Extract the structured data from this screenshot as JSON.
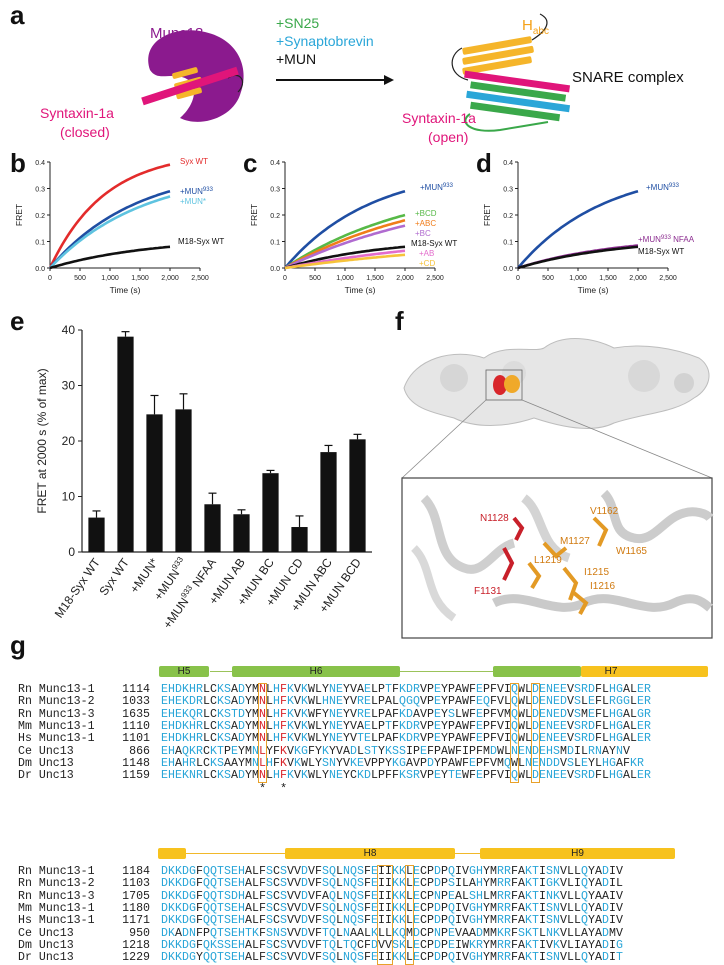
{
  "panels": {
    "a": "a",
    "b": "b",
    "c": "c",
    "d": "d",
    "e": "e",
    "f": "f",
    "g": "g"
  },
  "colors": {
    "red": "#e32b2b",
    "navy": "#1f4ea3",
    "cyan": "#5ec3e0",
    "black": "#111111",
    "green": "#57b947",
    "orange": "#f07d1a",
    "violet": "#b06bd0",
    "pink": "#e36ccc",
    "yellow": "#f6c33a",
    "purple": "#8b2b8f",
    "magenta": "#e0157a",
    "helix_green": "#88c24a",
    "helix_yellow": "#f7c21e",
    "seq_blue": "#2aa6d8",
    "box": "#e8a12a"
  },
  "panel_a": {
    "munc18": "Munc18",
    "syntaxin_closed_1": "Syntaxin-1a",
    "syntaxin_closed_2": "(closed)",
    "reagent1": "+SN25",
    "reagent2": "+Synaptobrevin",
    "reagent3": "+MUN",
    "habc_main": "H",
    "habc_sub": "abc",
    "snare": "SNARE complex",
    "syntaxin_open_1": "Syntaxin-1a",
    "syntaxin_open_2": "(open)"
  },
  "line_charts": {
    "ylabel": "FRET",
    "xlabel": "Time (s)",
    "yticks": [
      "0.0",
      "0.1",
      "0.2",
      "0.3",
      "0.4"
    ],
    "xticks": [
      "0",
      "500",
      "1,000",
      "1,500",
      "2,000",
      "2,500"
    ],
    "b": {
      "series": [
        {
          "name": "Syx WT",
          "color": "#e32b2b",
          "end": 0.39,
          "k": 2.2
        },
        {
          "name": "+MUN933",
          "color": "#1f4ea3",
          "end": 0.29,
          "k": 1.4
        },
        {
          "name": "+MUN*",
          "color": "#5ec3e0",
          "end": 0.27,
          "k": 1.3
        },
        {
          "name": "M18-Syx WT",
          "color": "#111111",
          "end": 0.08,
          "k": 1.2
        }
      ]
    },
    "c": {
      "series": [
        {
          "name": "+MUN933",
          "color": "#1f4ea3",
          "end": 0.29,
          "k": 1.4
        },
        {
          "name": "+BCD",
          "color": "#57b947",
          "end": 0.2,
          "k": 0.9
        },
        {
          "name": "+ABC",
          "color": "#f07d1a",
          "end": 0.18,
          "k": 0.8
        },
        {
          "name": "+BC",
          "color": "#b06bd0",
          "end": 0.16,
          "k": 0.7
        },
        {
          "name": "M18-Syx WT",
          "color": "#111111",
          "end": 0.08,
          "k": 1.2
        },
        {
          "name": "+AB",
          "color": "#e36ccc",
          "end": 0.065,
          "k": 0.6
        },
        {
          "name": "+CD",
          "color": "#f6c33a",
          "end": 0.05,
          "k": 0.5
        }
      ]
    },
    "d": {
      "series": [
        {
          "name": "+MUN933",
          "color": "#1f4ea3",
          "end": 0.29,
          "k": 1.4
        },
        {
          "name": "+MUN933 NFAA",
          "color": "#8b2b8f",
          "end": 0.085,
          "k": 1.2
        },
        {
          "name": "M18-Syx WT",
          "color": "#111111",
          "end": 0.08,
          "k": 1.2
        }
      ]
    },
    "legend_b": {
      "syx": "Syx WT",
      "mun": "+MUN",
      "mun_sup": "933",
      "munstar": "+MUN*",
      "m18": "M18-Syx WT"
    },
    "legend_c": {
      "mun": "+MUN",
      "mun_sup": "933",
      "bcd": "+BCD",
      "abc": "+ABC",
      "bc": "+BC",
      "m18": "M18-Syx WT",
      "ab": "+AB",
      "cd": "+CD"
    },
    "legend_d": {
      "mun": "+MUN",
      "mun_sup": "933",
      "nfaa": "+MUN",
      "nfaa_sup": "933",
      "nfaa_tail": " NFAA",
      "m18": "M18-Syx WT"
    }
  },
  "chart_data": {
    "type": "bar",
    "ylabel": "FRET at 2000 s (% of max)",
    "ylim": [
      0,
      40
    ],
    "yticks": [
      "0",
      "10",
      "20",
      "30",
      "40"
    ],
    "categories": [
      "M18-Syx WT",
      "Syx WT",
      "+MUN*",
      "+MUN933",
      "+MUN933 NFAA",
      "+MUN AB",
      "+MUN BC",
      "+MUN CD",
      "+MUN ABC",
      "+MUN BCD"
    ],
    "values": [
      6.2,
      38.8,
      24.8,
      25.7,
      8.6,
      6.8,
      14.2,
      4.5,
      18.0,
      20.3
    ],
    "errors": [
      1.2,
      0.9,
      3.4,
      2.8,
      2.0,
      0.8,
      0.5,
      2.0,
      1.2,
      0.9
    ]
  },
  "panel_f": {
    "residues": [
      "N1128",
      "V1162",
      "M1127",
      "W1165",
      "L1219",
      "I1215",
      "I1216",
      "F1131"
    ]
  },
  "panel_g": {
    "helices_top": [
      "H5",
      "H6",
      "H7"
    ],
    "helices_bottom": [
      "H8",
      "H9"
    ],
    "block1": [
      {
        "org": "Rn Munc13-1",
        "num": "1114",
        "seq": "EHDKHRLCKSADYMNLHFKVKWLYNEYVAELPTFKDRVPEYPAWFEPFVIQWLDENEEVSRDFLHGALER"
      },
      {
        "org": "Rn Munc13-2",
        "num": "1033",
        "seq": "EHEKDRLCKSADYMNLHFKVKWLHNEYVRELPALQGQVPEYPAWFEQFVLQWLDENEDVSLEFLRGGLER"
      },
      {
        "org": "Rn Munc13-3",
        "num": "1635",
        "seq": "EHEKQRLCKSTDYMNLHFKVKWFYNEYVRELPAFKDAVPEYSLWFEPFVMQWLDENEDVSMEFLHGALGR"
      },
      {
        "org": "Mm Munc13-1",
        "num": "1110",
        "seq": "EHDKHRLCKSADYMNLHFKVKWLYNEYVAELPTFKDRVPEYPAWFEPFVIQWLDENEEVSRDFLHGALER"
      },
      {
        "org": "Hs Munc13-1",
        "num": "1101",
        "seq": "EHDKHRLCKSADYMNLHFKVKWLYNEYVTELPAFKDRVPEYPAWFEPFVIQWLDENEEVSRDFLHGALER"
      },
      {
        "org": "Ce Unc13",
        "num": "866",
        "seq": "EHAQKRCKTPEYMNLYFKVKGFYKYVADLSTYKSSIPEFPAWFIPFMDWLNENDEHSMDILRNAYNV"
      },
      {
        "org": "Dm Unc13",
        "num": "1148",
        "seq": "EHAHRLCKSAAYMNLHFKVKWLYSNYVKEVPPYKGAVPDYPAWFEPFVMQWLNENDDVSLEYLHGAFKR"
      },
      {
        "org": "Dr Unc13",
        "num": "1159",
        "seq": "EHEKNRLCKSADYMNLHFKVKWLYNEYCKDLPFFKSRVPEYTEWFEPFVIQWLDENEEVSRDFLHGALER"
      }
    ],
    "block2": [
      {
        "org": "Rn Munc13-1",
        "num": "1184",
        "seq": "DKKDGFQQTSEHALFSCSVVDVFSQLNQSFEIIKKLECPDPQIVGHYMRRFAKTISNVLLQYADIV"
      },
      {
        "org": "Rn Munc13-2",
        "num": "1103",
        "seq": "DKKDGFQQTSEHALFSCSVVDVFSQLNQSFEIIKKLECPDPSILAHYMRRFAKTIGKVLIQYADIL"
      },
      {
        "org": "Rn Munc13-3",
        "num": "1705",
        "seq": "DKKDGFQQTSDHALFSCSVVDVFAQLNQSFEIIKKLECPNPEALSHLMRRFAKTINKVLLQYAAIV"
      },
      {
        "org": "Mm Munc13-1",
        "num": "1180",
        "seq": "DKKDGFQQTSEHALFSCSVVDVFSQLNQSFEIIKKLECPDPQIVGHYMRRFAKTISNVLLQYADIV"
      },
      {
        "org": "Hs Munc13-1",
        "num": "1171",
        "seq": "DKKDGFQQTSEHALFSCSVVDVFSQLNQSFEIIKKLECPDPQIVGHYMRRFAKTISNVLLQYADIV"
      },
      {
        "org": "Ce Unc13",
        "num": "950",
        "seq": "DKADNFPQTSEHTKFSNSVVDVFTQLNAALKLLKQMDCPNPEVAADMMKRFSKTLNKVLLAYADMV"
      },
      {
        "org": "Dm Unc13",
        "num": "1218",
        "seq": "DKKDGFQKSSEHALFSCSVVDVFTQLTQCFDVVSKLECPDPEIWKRYMRRFAKTIVKVLIAYADIG"
      },
      {
        "org": "Dr Unc13",
        "num": "1229",
        "seq": "DKKDGYQQTSEHALFSCSVVDVFSQLNQSFEIIKKLECPDPQIVGHYMRRFAKTISNVLLQYADIT"
      }
    ],
    "star": "*"
  }
}
